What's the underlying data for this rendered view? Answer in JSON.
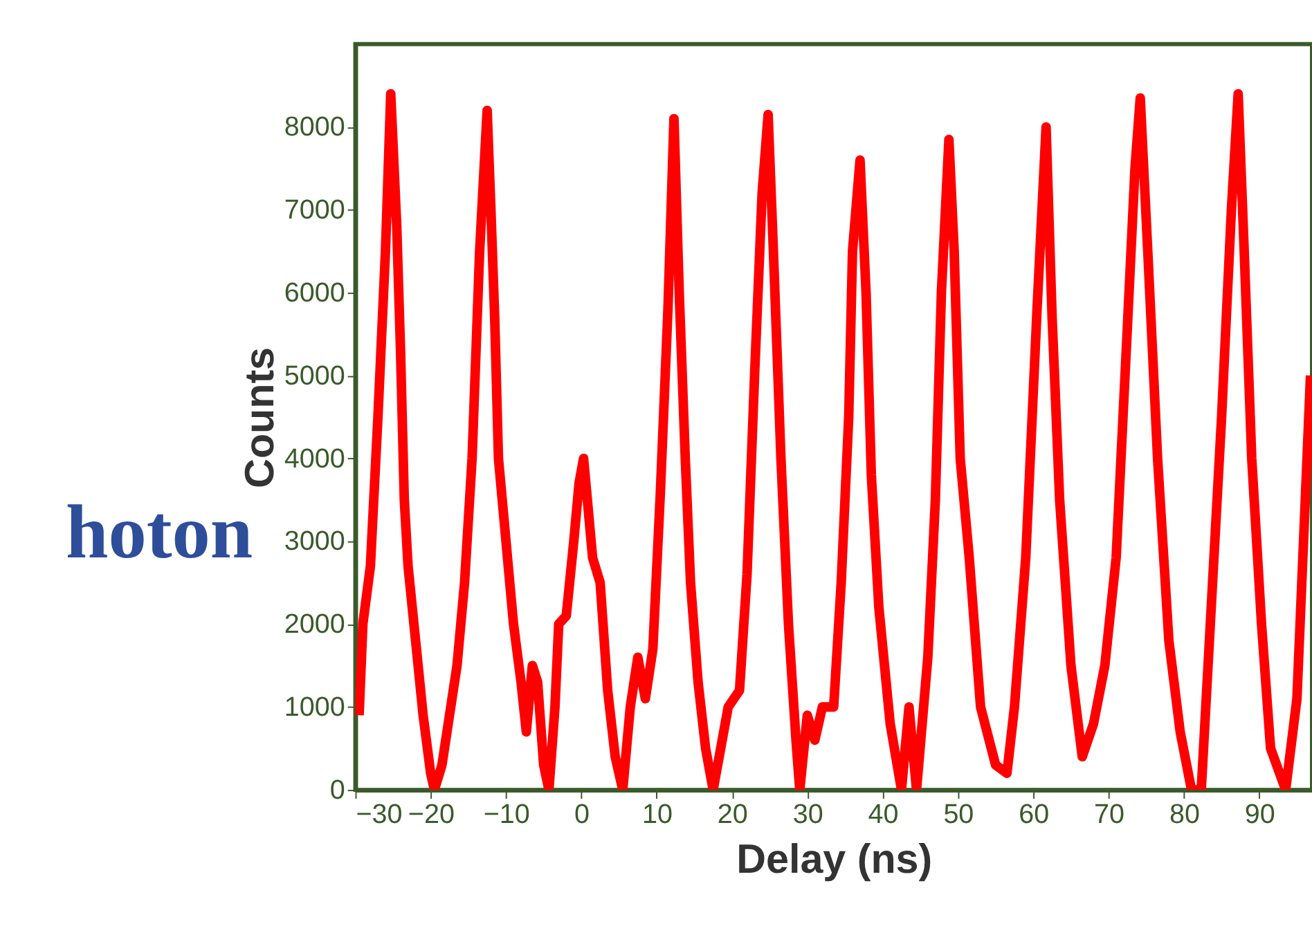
{
  "chart_data": {
    "type": "line",
    "xlabel": "Delay (ns)",
    "ylabel": "Counts",
    "annotations": [
      "hoton"
    ],
    "xlim": [
      -30,
      97
    ],
    "xticks": [
      -30,
      -20,
      -10,
      0,
      10,
      20,
      30,
      40,
      50,
      60,
      70,
      80,
      90
    ],
    "ylim": [
      0,
      9000
    ],
    "yticks": [
      0,
      1000,
      2000,
      3000,
      4000,
      5000,
      6000,
      7000,
      8000
    ],
    "grid": false,
    "marker": "none",
    "line_style": "solid",
    "x": [
      -29.5,
      -29,
      -28,
      -27,
      -26,
      -25.3,
      -24.5,
      -24,
      -23.5,
      -23,
      -22,
      -21,
      -20,
      -19.5,
      -18.5,
      -17.5,
      -16.5,
      -15.5,
      -14.5,
      -13.5,
      -12.5,
      -12,
      -11.5,
      -11,
      -10,
      -9,
      -8,
      -7.3,
      -6.5,
      -5.8,
      -5,
      -4.3,
      -3.5,
      -3,
      -2,
      -1,
      -0.3,
      0.3,
      0.8,
      1.5,
      2.5,
      3.5,
      4.5,
      5.5,
      6.5,
      7.5,
      8.5,
      9.5,
      10.5,
      11.5,
      12.3,
      13,
      13.8,
      14.5,
      15.5,
      16.5,
      17.5,
      18.5,
      19.5,
      21,
      22,
      23,
      24,
      24.8,
      25.5,
      26.5,
      27.5,
      28.5,
      29,
      30,
      31,
      32,
      33.5,
      34.5,
      35.5,
      36,
      37,
      37.8,
      38.5,
      39.5,
      41,
      42.5,
      43.5,
      44.5,
      46,
      47,
      47.8,
      48.8,
      49.5,
      50.3,
      51.5,
      53,
      55,
      56.5,
      57.5,
      59,
      60.5,
      61.7,
      62.5,
      63.5,
      65,
      66.5,
      68,
      69.5,
      71,
      72.5,
      73.5,
      74.2,
      75.2,
      76.5,
      78,
      79.5,
      81,
      82.3,
      83.5,
      85,
      86.3,
      87.2,
      88,
      89,
      90.3,
      91.5,
      93.5,
      95,
      96.8
    ],
    "series": [
      {
        "color": "#ff0000",
        "values": [
          900,
          2000,
          2700,
          4500,
          6500,
          8400,
          6800,
          5300,
          3500,
          2700,
          1800,
          900,
          200,
          0,
          300,
          900,
          1500,
          2500,
          4000,
          6500,
          8200,
          7000,
          5700,
          4000,
          3000,
          2000,
          1300,
          700,
          1500,
          1300,
          300,
          0,
          1000,
          2000,
          2100,
          3000,
          3700,
          4000,
          3500,
          2800,
          2500,
          1200,
          400,
          0,
          1000,
          1600,
          1100,
          1700,
          3600,
          5800,
          8100,
          6000,
          4000,
          2500,
          1300,
          500,
          0,
          500,
          1000,
          1200,
          2600,
          5000,
          7200,
          8150,
          6500,
          4000,
          2000,
          600,
          0,
          900,
          600,
          1000,
          1000,
          2500,
          4500,
          6500,
          7600,
          6000,
          3800,
          2200,
          800,
          0,
          1000,
          0,
          1600,
          3500,
          6000,
          7850,
          6500,
          4000,
          2800,
          1000,
          300,
          200,
          1000,
          2800,
          5800,
          8000,
          5700,
          3500,
          1500,
          400,
          800,
          1500,
          2800,
          5600,
          7500,
          8350,
          6500,
          4000,
          1800,
          700,
          0,
          0,
          2000,
          4500,
          7000,
          8400,
          6500,
          4000,
          2000,
          500,
          0,
          1100,
          5000
        ]
      }
    ]
  }
}
